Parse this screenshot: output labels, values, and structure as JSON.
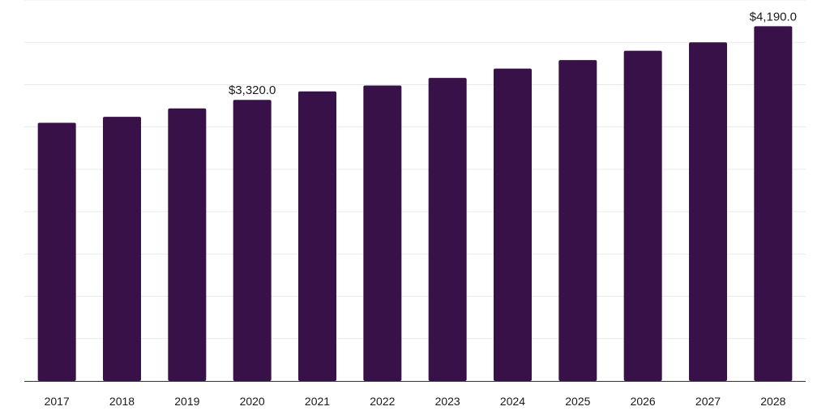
{
  "colors": {
    "bar": "#371148",
    "grid": "#e9e9e9",
    "axis": "#333333"
  },
  "chart_data": {
    "type": "bar",
    "title": "",
    "xlabel": "",
    "ylabel": "",
    "categories": [
      "2017",
      "2018",
      "2019",
      "2020",
      "2021",
      "2022",
      "2023",
      "2024",
      "2025",
      "2026",
      "2027",
      "2028"
    ],
    "values": [
      3050,
      3120,
      3220,
      3320,
      3420,
      3490,
      3580,
      3690,
      3790,
      3900,
      4000,
      4190
    ],
    "ylim": [
      0,
      4500
    ],
    "grid": true,
    "data_labels": [
      {
        "index": 3,
        "text": "$3,320.0"
      },
      {
        "index": 11,
        "text": "$4,190.0"
      }
    ]
  }
}
